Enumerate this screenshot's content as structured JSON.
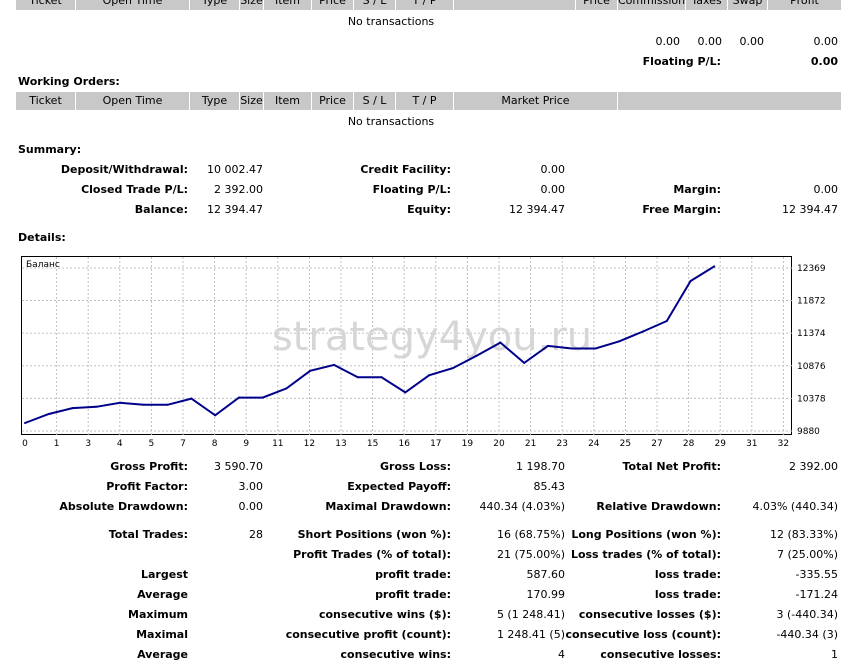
{
  "transactions_table": {
    "headers": [
      "Ticket",
      "Open Time",
      "Type",
      "Size",
      "Item",
      "Price",
      "S / L",
      "T / P",
      "",
      "Price",
      "Commission",
      "Taxes",
      "Swap",
      "Profit"
    ],
    "empty_text": "No transactions",
    "totals": [
      "0.00",
      "0.00",
      "0.00",
      "0.00"
    ],
    "floating_label": "Floating P/L:",
    "floating_value": "0.00"
  },
  "working_orders": {
    "title": "Working Orders:",
    "headers": [
      "Ticket",
      "Open Time",
      "Type",
      "Size",
      "Item",
      "Price",
      "S / L",
      "T / P",
      "Market Price",
      ""
    ],
    "empty_text": "No transactions"
  },
  "summary": {
    "title": "Summary:",
    "rows": [
      [
        {
          "label": "Deposit/Withdrawal:",
          "value": "10 002.47"
        },
        {
          "label": "Credit Facility:",
          "value": "0.00"
        },
        {
          "label": "",
          "value": ""
        }
      ],
      [
        {
          "label": "Closed Trade P/L:",
          "value": "2 392.00"
        },
        {
          "label": "Floating P/L:",
          "value": "0.00"
        },
        {
          "label": "Margin:",
          "value": "0.00"
        }
      ],
      [
        {
          "label": "Balance:",
          "value": "12 394.47"
        },
        {
          "label": "Equity:",
          "value": "12 394.47"
        },
        {
          "label": "Free Margin:",
          "value": "12 394.47"
        }
      ]
    ]
  },
  "details": {
    "title": "Details:"
  },
  "chart_data": {
    "type": "line",
    "series": [
      {
        "name": "Баланс",
        "color": "#00008b",
        "x": [
          0,
          1,
          2,
          3,
          4,
          5,
          6,
          7,
          8,
          9,
          10,
          11,
          12,
          13,
          14,
          15,
          16,
          17,
          18,
          19,
          20,
          21,
          22,
          23,
          24,
          25,
          26,
          27,
          28,
          29
        ],
        "y": [
          10002,
          10140,
          10230,
          10250,
          10310,
          10280,
          10280,
          10375,
          10120,
          10390,
          10390,
          10530,
          10800,
          10890,
          10700,
          10700,
          10470,
          10730,
          10840,
          11030,
          11230,
          10920,
          11180,
          11140,
          11140,
          11250,
          11400,
          11560,
          12170,
          12394
        ]
      }
    ],
    "x_ticks": [
      "0",
      "1",
      "3",
      "4",
      "5",
      "7",
      "8",
      "9",
      "11",
      "12",
      "13",
      "15",
      "16",
      "17",
      "19",
      "20",
      "21",
      "23",
      "24",
      "25",
      "27",
      "28",
      "29",
      "31",
      "32"
    ],
    "y_ticks": [
      12369,
      11872,
      11374,
      10876,
      10378,
      9880
    ],
    "ylim": [
      9880,
      12520
    ],
    "grid": true,
    "watermark": "strategy4you.ru"
  },
  "stats": {
    "rows": [
      [
        {
          "label": "Gross Profit:",
          "value": "3 590.70"
        },
        {
          "label": "Gross Loss:",
          "value": "1 198.70"
        },
        {
          "label": "Total Net Profit:",
          "value": "2 392.00"
        }
      ],
      [
        {
          "label": "Profit Factor:",
          "value": "3.00"
        },
        {
          "label": "Expected Payoff:",
          "value": "85.43"
        },
        {
          "label": "",
          "value": ""
        }
      ],
      [
        {
          "label": "Absolute Drawdown:",
          "value": "0.00"
        },
        {
          "label": "Maximal Drawdown:",
          "value": "440.34 (4.03%)"
        },
        {
          "label": "Relative Drawdown:",
          "value": "4.03% (440.34)"
        }
      ],
      [
        {
          "label": "Total Trades:",
          "value": "28"
        },
        {
          "label": "Short Positions (won %):",
          "value": "16 (68.75%)"
        },
        {
          "label": "Long Positions (won %):",
          "value": "12 (83.33%)"
        }
      ],
      [
        {
          "label": "",
          "value": ""
        },
        {
          "label": "Profit Trades (% of total):",
          "value": "21 (75.00%)"
        },
        {
          "label": "Loss trades (% of total):",
          "value": "7 (25.00%)"
        }
      ],
      [
        {
          "label": "Largest",
          "value": ""
        },
        {
          "label": "profit trade:",
          "value": "587.60"
        },
        {
          "label": "loss trade:",
          "value": "-335.55"
        }
      ],
      [
        {
          "label": "Average",
          "value": ""
        },
        {
          "label": "profit trade:",
          "value": "170.99"
        },
        {
          "label": "loss trade:",
          "value": "-171.24"
        }
      ],
      [
        {
          "label": "Maximum",
          "value": ""
        },
        {
          "label": "consecutive wins ($):",
          "value": "5 (1 248.41)"
        },
        {
          "label": "consecutive losses ($):",
          "value": "3 (-440.34)"
        }
      ],
      [
        {
          "label": "Maximal",
          "value": ""
        },
        {
          "label": "consecutive profit (count):",
          "value": "1 248.41 (5)"
        },
        {
          "label": "consecutive loss (count):",
          "value": "-440.34 (3)"
        }
      ],
      [
        {
          "label": "Average",
          "value": ""
        },
        {
          "label": "consecutive wins:",
          "value": "4"
        },
        {
          "label": "consecutive losses:",
          "value": "1"
        }
      ]
    ]
  }
}
